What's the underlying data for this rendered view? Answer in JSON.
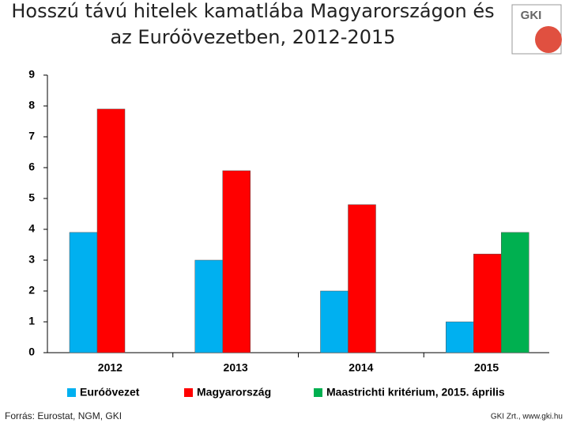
{
  "chart_data": {
    "type": "bar",
    "title": "Hosszú távú hitelek kamatlába Magyarországon és az Euróövezetben, 2012-2015",
    "categories": [
      "2012",
      "2013",
      "2014",
      "2015"
    ],
    "series": [
      {
        "name": "Euróövezet",
        "color": "#00b0f0",
        "values": [
          3.9,
          3.0,
          2.0,
          1.0
        ]
      },
      {
        "name": "Magyarország",
        "color": "#ff0000",
        "values": [
          7.9,
          5.9,
          4.8,
          3.2
        ]
      },
      {
        "name": "Maastrichti kritérium, 2015. április",
        "color": "#00b050",
        "values": [
          null,
          null,
          null,
          3.9
        ]
      }
    ],
    "ylim": [
      0,
      9
    ],
    "yticks": [
      0,
      1,
      2,
      3,
      4,
      5,
      6,
      7,
      8,
      9
    ],
    "grid": false,
    "source": "Forrás: Eurostat, NGM, GKI",
    "credit": "GKI Zrt., www.gki.hu",
    "logo": "GKI"
  }
}
